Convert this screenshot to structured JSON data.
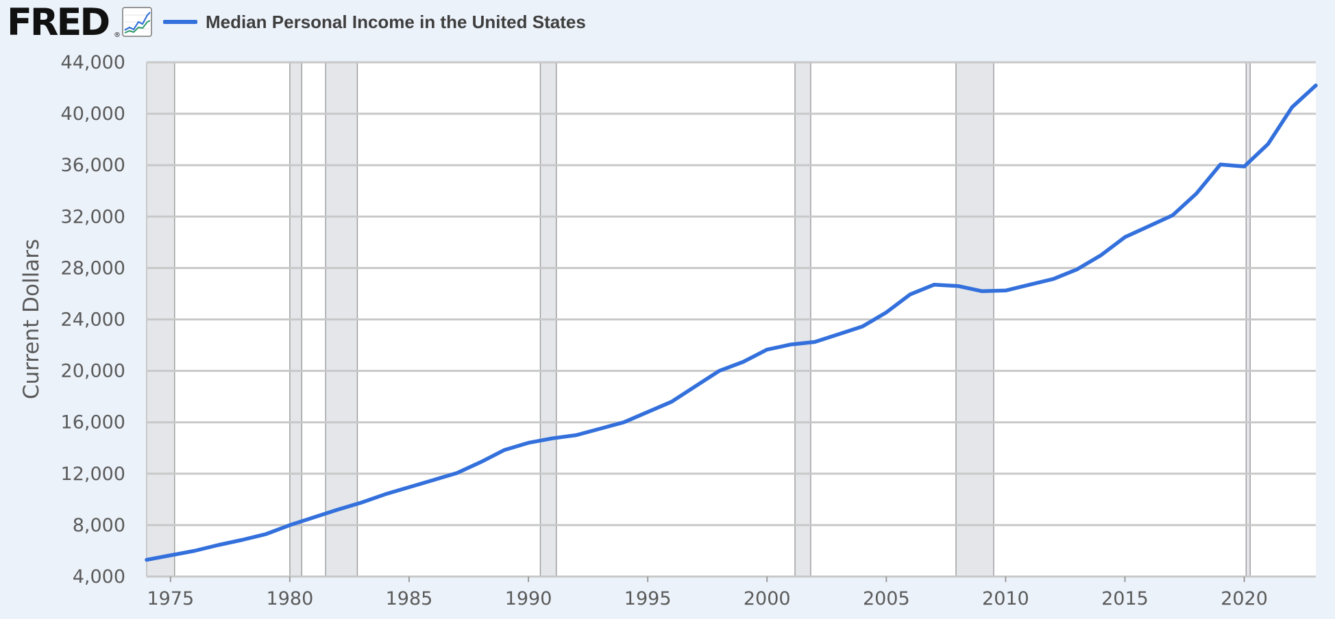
{
  "header": {
    "logo_text": "FRED",
    "logo_mark": "®",
    "logo_icon": "line-graph-icon"
  },
  "colors": {
    "background": "#ecf2fa",
    "plot_background": "#ffffff",
    "series": "#3370dc",
    "recession_shading": "#e4e6ea",
    "grid": "#c8c8c8"
  },
  "chart_data": {
    "type": "line",
    "title": "",
    "xlabel": "",
    "ylabel": "Current Dollars",
    "xlim": [
      1974,
      2023
    ],
    "ylim": [
      4000,
      44000
    ],
    "grid": true,
    "legend_position": "top",
    "yticks": [
      4000,
      8000,
      12000,
      16000,
      20000,
      24000,
      28000,
      32000,
      36000,
      40000,
      44000
    ],
    "ytick_labels": [
      "4,000",
      "8,000",
      "12,000",
      "16,000",
      "20,000",
      "24,000",
      "28,000",
      "32,000",
      "36,000",
      "40,000",
      "44,000"
    ],
    "xticks": [
      1975,
      1980,
      1985,
      1990,
      1995,
      2000,
      2005,
      2010,
      2015,
      2020
    ],
    "xtick_labels": [
      "1975",
      "1980",
      "1985",
      "1990",
      "1995",
      "2000",
      "2005",
      "2010",
      "2015",
      "2020"
    ],
    "recessions": [
      [
        1974.0,
        1975.17
      ],
      [
        1980.0,
        1980.5
      ],
      [
        1981.5,
        1982.83
      ],
      [
        1990.5,
        1991.17
      ],
      [
        2001.17,
        2001.83
      ],
      [
        2007.92,
        2009.5
      ],
      [
        2020.08,
        2020.25
      ]
    ],
    "series": [
      {
        "name": "Median Personal Income in the United States",
        "x": [
          1974,
          1975,
          1976,
          1977,
          1978,
          1979,
          1980,
          1981,
          1982,
          1983,
          1984,
          1985,
          1986,
          1987,
          1988,
          1989,
          1990,
          1991,
          1992,
          1993,
          1994,
          1995,
          1996,
          1997,
          1998,
          1999,
          2000,
          2001,
          2002,
          2003,
          2004,
          2005,
          2006,
          2007,
          2008,
          2009,
          2010,
          2011,
          2012,
          2013,
          2014,
          2015,
          2016,
          2017,
          2018,
          2019,
          2020,
          2021,
          2022,
          2023
        ],
        "values": [
          5300,
          5650,
          6000,
          6450,
          6850,
          7300,
          8000,
          8600,
          9200,
          9750,
          10400,
          10950,
          11500,
          12050,
          12900,
          13850,
          14400,
          14750,
          15000,
          15500,
          16000,
          16800,
          17600,
          18800,
          20000,
          20700,
          21650,
          22050,
          22250,
          22850,
          23450,
          24550,
          25950,
          26700,
          26600,
          26200,
          26250,
          26700,
          27150,
          27900,
          29000,
          30400,
          31250,
          32100,
          33800,
          36050,
          35900,
          37650,
          40500,
          42200
        ]
      }
    ]
  }
}
